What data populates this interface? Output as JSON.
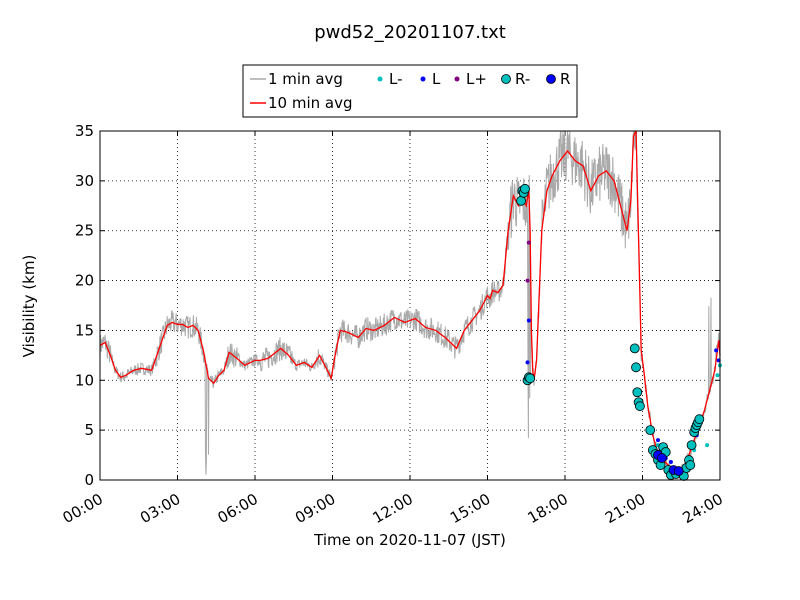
{
  "chart_data": {
    "type": "line",
    "title": "pwd52_20201107.txt",
    "xlabel": "Time on 2020-11-07 (JST)",
    "ylabel": "Visibility (km)",
    "xlim": [
      0,
      24
    ],
    "ylim": [
      0,
      35
    ],
    "x_tick_labels": [
      "00:00",
      "03:00",
      "06:00",
      "09:00",
      "12:00",
      "15:00",
      "18:00",
      "21:00",
      "24:00"
    ],
    "x_tick_values": [
      0,
      3,
      6,
      9,
      12,
      15,
      18,
      21,
      24
    ],
    "y_tick_values": [
      0,
      5,
      10,
      15,
      20,
      25,
      30,
      35
    ],
    "grid": "dotted",
    "legend": {
      "placement": "top-center",
      "entries": [
        {
          "label": "1 min avg",
          "style": "line",
          "color": "#a9a9a9"
        },
        {
          "label": "10 min avg",
          "style": "line",
          "color": "#ff0000"
        },
        {
          "label": "L-",
          "style": "small-dot",
          "color": "#00bfbf"
        },
        {
          "label": "L",
          "style": "small-dot",
          "color": "#0000ff"
        },
        {
          "label": "L+",
          "style": "small-dot",
          "color": "#800080"
        },
        {
          "label": "R-",
          "style": "circle",
          "color": "#00bfbf"
        },
        {
          "label": "R",
          "style": "circle",
          "color": "#0000ff"
        }
      ]
    },
    "series": [
      {
        "name": "10 min avg",
        "color": "#ff0000",
        "x": [
          0,
          0.2,
          0.4,
          0.6,
          0.8,
          1.0,
          1.3,
          1.6,
          1.8,
          2.0,
          2.2,
          2.4,
          2.6,
          2.8,
          3.0,
          3.2,
          3.4,
          3.6,
          3.8,
          4.0,
          4.2,
          4.4,
          4.6,
          4.8,
          5.0,
          5.3,
          5.6,
          6.0,
          6.2,
          6.5,
          6.8,
          7.0,
          7.3,
          7.6,
          7.9,
          8.2,
          8.5,
          8.8,
          8.95,
          9.1,
          9.3,
          9.6,
          10.0,
          10.3,
          10.6,
          11.0,
          11.4,
          11.8,
          12.2,
          12.6,
          13.0,
          13.4,
          13.8,
          14.1,
          14.4,
          14.7,
          14.9,
          15.0,
          15.1,
          15.2,
          15.4,
          15.6,
          15.8,
          16.0,
          16.2,
          16.35,
          16.5,
          16.6,
          16.65,
          16.7,
          16.75,
          16.8,
          16.9,
          17.1,
          17.3,
          17.5,
          17.8,
          18.1,
          18.4,
          18.7,
          19.0,
          19.3,
          19.6,
          19.9,
          20.2,
          20.4,
          20.55,
          20.65,
          20.75,
          20.85,
          20.95,
          21.05,
          21.2,
          21.4,
          21.6,
          21.8,
          22.0,
          22.2,
          22.4,
          22.6,
          22.8,
          23.0,
          23.2,
          23.4,
          23.6,
          23.8,
          23.95,
          24.0
        ],
        "y": [
          13.5,
          13.8,
          12.5,
          11.0,
          10.3,
          10.5,
          11.0,
          11.2,
          11.1,
          11.0,
          12.5,
          14.0,
          15.5,
          15.8,
          15.6,
          15.6,
          15.3,
          15.5,
          15.0,
          13.0,
          10.2,
          9.7,
          10.5,
          11.0,
          12.8,
          12.2,
          11.5,
          12.0,
          12.0,
          12.2,
          12.8,
          13.2,
          12.5,
          11.5,
          11.8,
          11.3,
          12.5,
          11.0,
          10.2,
          12.5,
          15.0,
          14.8,
          14.3,
          15.2,
          15.0,
          15.5,
          16.3,
          15.8,
          16.2,
          15.3,
          15.0,
          14.2,
          13.2,
          15.0,
          16.0,
          17.0,
          18.0,
          18.5,
          18.2,
          19.0,
          18.8,
          19.5,
          25.0,
          28.5,
          27.5,
          28.2,
          27.5,
          29.0,
          25.0,
          15.0,
          11.0,
          10.0,
          12.0,
          25.0,
          29.0,
          30.5,
          32.0,
          33.0,
          32.0,
          31.5,
          29.0,
          30.5,
          31.0,
          30.0,
          27.0,
          25.0,
          28.0,
          34.5,
          35.0,
          24.0,
          13.0,
          11.0,
          7.5,
          4.5,
          2.5,
          2.0,
          1.5,
          0.8,
          0.7,
          1.2,
          2.5,
          4.0,
          5.5,
          7.0,
          9.0,
          11.0,
          14.0,
          12.5
        ]
      },
      {
        "name": "L-",
        "color": "#00bfbf",
        "x": [
          21.6,
          21.7,
          21.8,
          22.2,
          22.4,
          22.8,
          23.0,
          23.5,
          23.9,
          24.0
        ],
        "y": [
          3.5,
          2.0,
          1.5,
          0.9,
          0.7,
          1.2,
          3.0,
          3.5,
          10.5,
          11.5
        ]
      },
      {
        "name": "L",
        "color": "#0000ff",
        "x": [
          16.55,
          16.6,
          21.6,
          21.7,
          21.9,
          22.1,
          22.3,
          22.6,
          22.7,
          22.9,
          23.0,
          23.1,
          23.85,
          23.95
        ],
        "y": [
          11.8,
          16.0,
          4.0,
          3.0,
          2.2,
          1.8,
          1.0,
          1.2,
          1.0,
          2.0,
          3.5,
          4.5,
          13.0,
          12.0
        ]
      },
      {
        "name": "L+",
        "color": "#800080",
        "x": [
          16.55,
          16.6
        ],
        "y": [
          20.0,
          23.8
        ]
      },
      {
        "name": "R-",
        "color": "#00bfbf",
        "x": [
          16.3,
          16.35,
          16.4,
          16.45,
          16.55,
          16.6,
          16.65,
          20.7,
          20.75,
          20.8,
          20.85,
          20.9,
          21.3,
          21.4,
          21.5,
          21.6,
          21.7,
          21.8,
          21.9,
          22.0,
          22.1,
          22.3,
          22.5,
          22.6,
          22.7,
          22.8,
          22.85,
          22.9,
          23.0,
          23.05,
          23.1,
          23.15,
          23.2
        ],
        "y": [
          28.0,
          29.0,
          28.8,
          29.2,
          10.0,
          10.3,
          10.2,
          13.2,
          11.3,
          8.8,
          7.8,
          7.4,
          5.0,
          3.0,
          2.6,
          2.0,
          1.5,
          3.3,
          2.8,
          1.0,
          0.5,
          0.6,
          0.8,
          0.4,
          1.2,
          2.0,
          1.5,
          3.5,
          4.8,
          5.2,
          5.5,
          5.8,
          6.1
        ]
      },
      {
        "name": "R",
        "color": "#0000ff",
        "x": [
          21.6,
          21.75,
          22.2,
          22.4
        ],
        "y": [
          2.5,
          2.2,
          1.0,
          0.9
        ]
      }
    ],
    "notes": "1 min avg is a noisy grey trace following the 10 min avg with larger spikes (dips near 04:10 to ~0.5, peaks above 35 around 15:30-21:00, spike near 23:40 to ~22)."
  }
}
